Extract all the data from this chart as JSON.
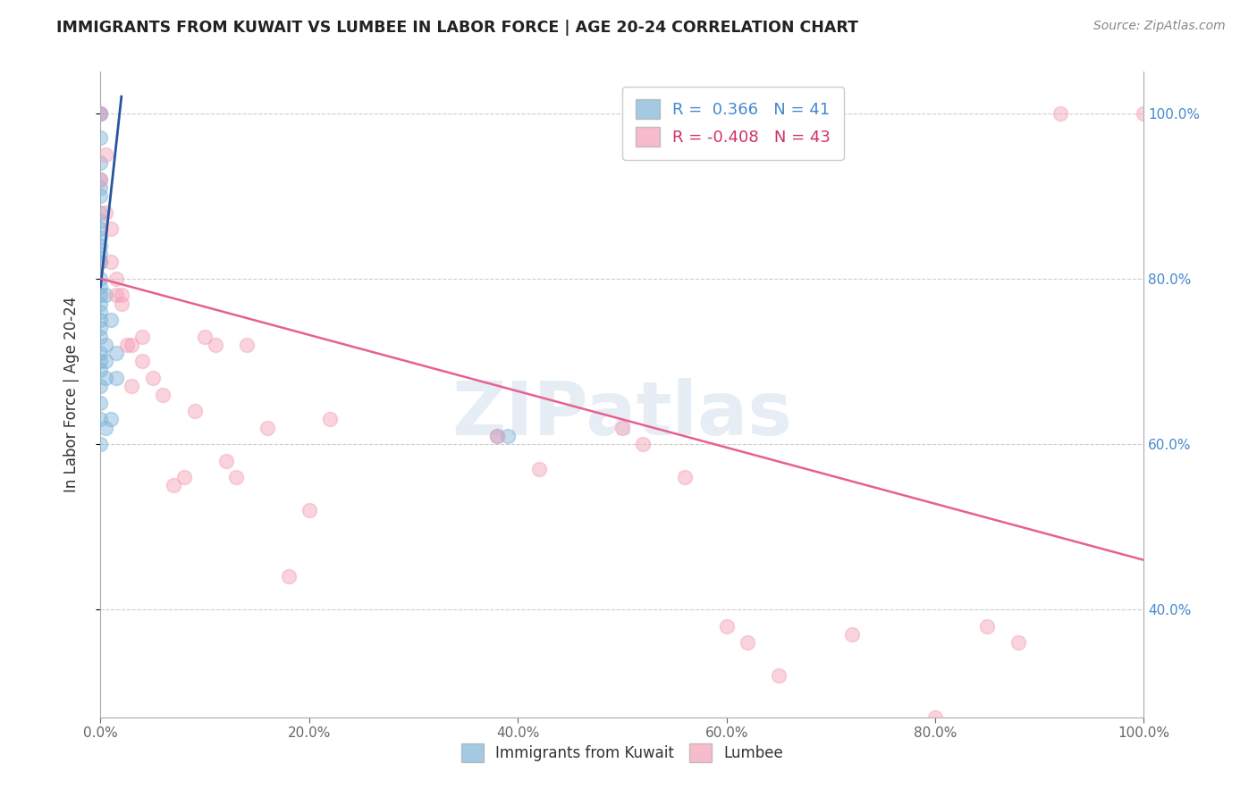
{
  "title": "IMMIGRANTS FROM KUWAIT VS LUMBEE IN LABOR FORCE | AGE 20-24 CORRELATION CHART",
  "source": "Source: ZipAtlas.com",
  "ylabel": "In Labor Force | Age 20-24",
  "x_tick_labels": [
    "0.0%",
    "20.0%",
    "40.0%",
    "60.0%",
    "80.0%",
    "100.0%"
  ],
  "y_tick_labels_right": [
    "100.0%",
    "80.0%",
    "60.0%",
    "40.0%"
  ],
  "legend_bottom": [
    "Immigrants from Kuwait",
    "Lumbee"
  ],
  "background_color": "#ffffff",
  "watermark": "ZIPatlas",
  "blue_scatter_x": [
    0.0,
    0.0,
    0.0,
    0.0,
    0.0,
    0.0,
    0.0,
    0.0,
    0.0,
    0.0,
    0.0,
    0.0,
    0.0,
    0.0,
    0.0,
    0.0,
    0.0,
    0.0,
    0.0,
    0.0,
    0.0,
    0.0,
    0.0,
    0.0,
    0.0,
    0.0,
    0.0,
    0.0,
    0.0,
    0.0,
    0.5,
    0.5,
    0.5,
    0.5,
    0.5,
    1.0,
    1.0,
    1.5,
    1.5,
    38.0,
    39.0
  ],
  "blue_scatter_y": [
    100.0,
    100.0,
    97.0,
    94.0,
    92.0,
    91.0,
    90.0,
    88.0,
    87.0,
    86.0,
    85.0,
    84.0,
    83.0,
    82.0,
    82.0,
    80.0,
    79.0,
    78.0,
    77.0,
    76.0,
    75.0,
    74.0,
    73.0,
    71.0,
    70.0,
    69.0,
    67.0,
    65.0,
    63.0,
    60.0,
    78.0,
    72.0,
    70.0,
    68.0,
    62.0,
    75.0,
    63.0,
    71.0,
    68.0,
    61.0,
    61.0
  ],
  "pink_scatter_x": [
    0.0,
    0.0,
    0.5,
    0.5,
    1.0,
    1.0,
    1.5,
    1.5,
    2.0,
    2.0,
    2.5,
    3.0,
    3.0,
    4.0,
    4.0,
    5.0,
    6.0,
    7.0,
    8.0,
    9.0,
    10.0,
    11.0,
    12.0,
    13.0,
    14.0,
    16.0,
    18.0,
    20.0,
    22.0,
    38.0,
    42.0,
    50.0,
    52.0,
    56.0,
    60.0,
    62.0,
    65.0,
    72.0,
    80.0,
    85.0,
    88.0,
    92.0,
    100.0
  ],
  "pink_scatter_y": [
    100.0,
    92.0,
    95.0,
    88.0,
    86.0,
    82.0,
    80.0,
    78.0,
    78.0,
    77.0,
    72.0,
    72.0,
    67.0,
    73.0,
    70.0,
    68.0,
    66.0,
    55.0,
    56.0,
    64.0,
    73.0,
    72.0,
    58.0,
    56.0,
    72.0,
    62.0,
    44.0,
    52.0,
    63.0,
    61.0,
    57.0,
    62.0,
    60.0,
    56.0,
    38.0,
    36.0,
    32.0,
    37.0,
    27.0,
    38.0,
    36.0,
    100.0,
    100.0
  ],
  "blue_line_x1": 0.0,
  "blue_line_y1": 79.0,
  "blue_line_x2": 2.0,
  "blue_line_y2": 102.0,
  "pink_line_x1": 0.0,
  "pink_line_y1": 80.0,
  "pink_line_x2": 100.0,
  "pink_line_y2": 46.0,
  "xlim": [
    0,
    100
  ],
  "ylim": [
    27,
    105
  ],
  "blue_color": "#7eb3d8",
  "pink_color": "#f4a0b5",
  "blue_line_color": "#2855a0",
  "pink_line_color": "#e86090",
  "legend_r_blue": "R =  0.366   N = 41",
  "legend_r_pink": "R = -0.408   N = 43"
}
